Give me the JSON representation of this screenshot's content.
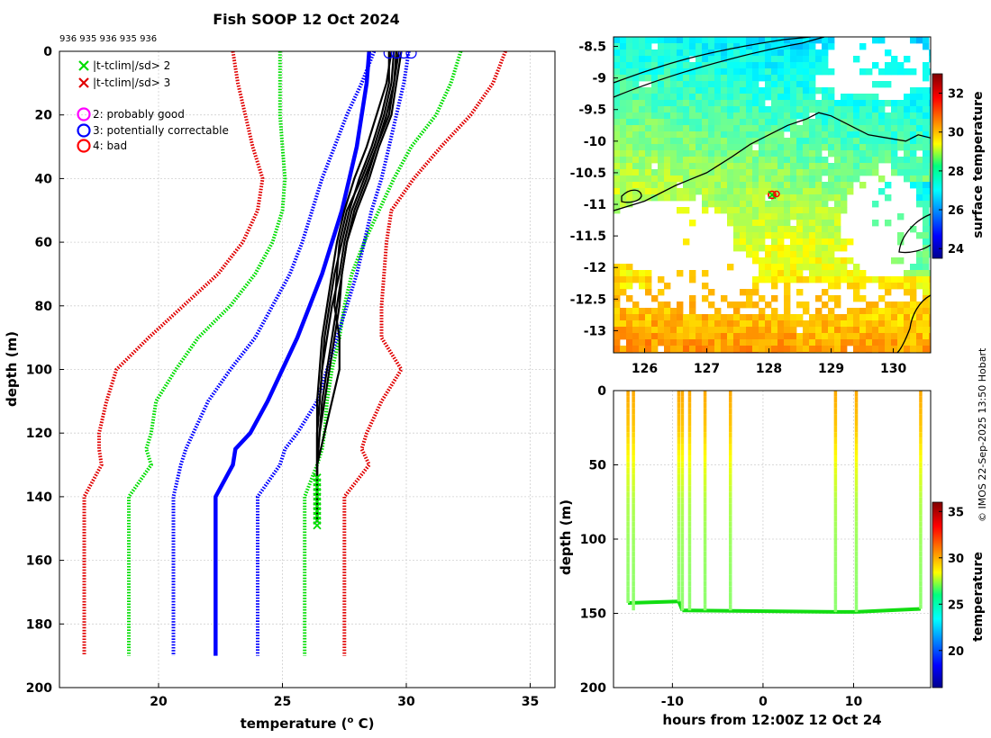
{
  "title": "Fish SOOP 12 Oct 2024",
  "profile_ids": "936 935 936 935 936",
  "credit": "© IMOS 22-Sep-2025 13:50 Hobart",
  "legend": {
    "sd2": "|t-tclim|/sd> 2",
    "sd3": "|t-tclim|/sd> 3",
    "flag2": "2: probably good",
    "flag3": "3: potentially correctable",
    "flag4": "4: bad"
  },
  "colors": {
    "clim_mean": "#0000ff",
    "sd1": "#0000ff",
    "sd2": "#00dd00",
    "sd3": "#e00000",
    "profiles": "#000000",
    "flag2": "#ff00ff",
    "flag3": "#0000ff",
    "flag4": "#ff0000",
    "land": "#000000"
  },
  "chart_data": [
    {
      "id": "profile_panel",
      "type": "line",
      "xlabel": "temperature (",
      "xlabel_sup": "o",
      "xlabel_end": " C)",
      "ylabel": "depth (m)",
      "xlim": [
        16,
        36
      ],
      "ylim": [
        200,
        0
      ],
      "xticks": [
        "20",
        "25",
        "30",
        "35"
      ],
      "yticks": [
        "0",
        "20",
        "40",
        "60",
        "80",
        "100",
        "120",
        "140",
        "160",
        "180",
        "200"
      ],
      "depth": [
        0,
        10,
        20,
        30,
        40,
        50,
        60,
        70,
        80,
        90,
        100,
        110,
        120,
        125,
        130,
        140,
        150,
        160,
        170,
        180,
        190
      ],
      "climatology_mean": [
        28.5,
        28.4,
        28.2,
        28.0,
        27.7,
        27.4,
        27.0,
        26.6,
        26.1,
        25.6,
        25.0,
        24.4,
        23.7,
        23.1,
        23.0,
        22.3,
        22.3,
        22.3,
        22.3,
        22.3,
        22.3
      ],
      "band_sd1": {
        "lower": [
          28.7,
          28.2,
          27.6,
          27.1,
          26.6,
          26.2,
          25.8,
          25.3,
          24.6,
          23.9,
          22.9,
          22.0,
          21.4,
          21.1,
          20.9,
          20.6,
          20.6,
          20.6,
          20.6,
          20.6,
          20.6
        ],
        "upper": [
          30.1,
          29.9,
          29.6,
          29.3,
          29.0,
          28.6,
          28.3,
          28.0,
          27.6,
          27.2,
          26.8,
          26.4,
          25.6,
          25.1,
          24.9,
          24.0,
          24.0,
          24.0,
          24.0,
          24.0,
          24.0
        ]
      },
      "band_sd2": {
        "lower": [
          24.9,
          24.9,
          24.9,
          25.0,
          25.1,
          25.0,
          24.6,
          23.9,
          22.9,
          21.6,
          20.7,
          19.9,
          19.7,
          19.5,
          19.7,
          18.8,
          18.8,
          18.8,
          18.8,
          18.8,
          18.8
        ],
        "upper": [
          32.2,
          31.8,
          31.2,
          30.2,
          29.5,
          28.9,
          28.3,
          27.8,
          27.5,
          27.3,
          27.0,
          26.8,
          26.7,
          26.6,
          26.4,
          25.9,
          25.9,
          25.9,
          25.9,
          25.9,
          25.9
        ]
      },
      "band_sd3": {
        "lower": [
          23.0,
          23.2,
          23.5,
          23.8,
          24.2,
          24.0,
          23.4,
          22.4,
          21.0,
          19.6,
          18.3,
          17.9,
          17.6,
          17.6,
          17.7,
          17.0,
          17.0,
          17.0,
          17.0,
          17.0,
          17.0
        ],
        "upper": [
          34.0,
          33.5,
          32.6,
          31.4,
          30.3,
          29.4,
          29.2,
          29.1,
          29.0,
          29.0,
          29.8,
          29.0,
          28.4,
          28.2,
          28.5,
          27.5,
          27.5,
          27.5,
          27.5,
          27.5,
          27.5
        ]
      },
      "profiles": [
        {
          "depth": [
            0,
            10,
            20,
            30,
            40,
            50,
            60,
            70,
            80,
            90,
            100,
            110,
            120,
            130,
            140,
            148
          ],
          "temp": [
            29.6,
            29.5,
            29.2,
            28.8,
            28.3,
            27.8,
            27.5,
            27.3,
            27.0,
            26.8,
            26.6,
            26.5,
            26.4,
            26.4,
            26.4,
            26.4
          ]
        },
        {
          "depth": [
            0,
            10,
            20,
            30,
            40,
            50,
            60,
            70,
            80,
            90,
            100,
            110,
            120,
            130,
            140,
            148
          ],
          "temp": [
            29.3,
            29.3,
            29.0,
            28.6,
            28.1,
            27.7,
            27.4,
            27.1,
            26.9,
            26.7,
            26.6,
            26.5,
            26.4,
            26.4,
            26.4,
            26.4
          ]
        },
        {
          "depth": [
            0,
            10,
            20,
            30,
            40,
            50,
            60,
            70,
            80,
            90,
            100,
            110,
            120,
            130,
            140,
            148
          ],
          "temp": [
            29.8,
            29.6,
            29.4,
            28.9,
            28.5,
            28.0,
            27.6,
            27.4,
            27.2,
            27.0,
            26.8,
            26.6,
            26.5,
            26.4,
            26.4,
            26.4
          ]
        },
        {
          "depth": [
            0,
            10,
            20,
            30,
            40,
            50,
            60,
            70,
            80,
            90,
            100,
            110,
            120,
            130,
            140,
            148
          ],
          "temp": [
            29.5,
            29.4,
            29.1,
            28.7,
            28.2,
            27.6,
            27.3,
            27.2,
            27.1,
            27.3,
            27.3,
            27.0,
            26.7,
            26.4,
            26.4,
            26.4
          ]
        },
        {
          "depth": [
            0,
            10,
            20,
            30,
            40,
            50,
            60,
            70,
            80,
            90,
            100,
            110,
            120,
            130,
            140,
            148
          ],
          "temp": [
            29.4,
            29.2,
            28.8,
            28.4,
            27.9,
            27.5,
            27.2,
            27.0,
            26.8,
            26.6,
            26.5,
            26.4,
            26.4,
            26.4,
            26.4,
            26.4
          ]
        },
        {
          "depth": [
            0,
            10,
            20,
            30,
            40,
            50,
            60,
            70,
            80,
            90,
            100,
            110,
            120,
            130,
            140,
            148
          ],
          "temp": [
            29.7,
            29.5,
            29.3,
            28.8,
            28.4,
            27.9,
            27.6,
            27.4,
            27.3,
            27.1,
            26.9,
            26.7,
            26.5,
            26.4,
            26.4,
            26.4
          ]
        }
      ],
      "surface_flags_flag3": {
        "depth": [
          0,
          0,
          0,
          0
        ],
        "temp": [
          29.3,
          29.6,
          29.9,
          30.2
        ]
      },
      "flagged_points_sd2": {
        "temp": 26.4,
        "depth_range": [
          134,
          150
        ]
      }
    },
    {
      "id": "sst_map",
      "type": "heatmap",
      "xticks": [
        "126",
        "127",
        "128",
        "129",
        "130"
      ],
      "yticks": [
        "-8.5",
        "-9",
        "-9.5",
        "-10",
        "-10.5",
        "-11",
        "-11.5",
        "-12",
        "-12.5",
        "-13"
      ],
      "xlim": [
        125.5,
        130.6
      ],
      "ylim": [
        -13.35,
        -8.35
      ],
      "colorbar_label": "surface temperature",
      "colorbar_ticks": [
        "24",
        "26",
        "28",
        "30",
        "32"
      ],
      "colorbar_range": [
        23.5,
        33.0
      ],
      "station": {
        "lon": 128.05,
        "lat": -10.85
      },
      "coastline_lon": [
        125.5,
        126.0,
        126.5,
        127.0,
        127.4,
        127.7,
        128.0,
        128.3,
        128.6,
        128.8,
        129.0,
        129.3,
        129.6,
        129.9,
        130.2,
        130.4,
        130.6
      ],
      "coastline_lat": [
        -11.1,
        -10.95,
        -10.7,
        -10.5,
        -10.25,
        -10.05,
        -9.9,
        -9.75,
        -9.65,
        -9.55,
        -9.6,
        -9.75,
        -9.9,
        -9.95,
        -10.0,
        -9.9,
        -9.95
      ]
    },
    {
      "id": "time_depth",
      "type": "scatter",
      "xlabel": "hours from 12:00Z 12 Oct 24",
      "ylabel": "depth (m)",
      "xlim": [
        -16.5,
        18.5
      ],
      "ylim": [
        200,
        0
      ],
      "xticks": [
        "-10",
        "0",
        "10"
      ],
      "yticks": [
        "0",
        "50",
        "100",
        "150",
        "200"
      ],
      "colorbar_label": "temperature",
      "colorbar_ticks": [
        "20",
        "25",
        "30",
        "35"
      ],
      "colorbar_range": [
        16.0,
        36.0
      ],
      "drop_hours": [
        -14.9,
        -14.3,
        -9.3,
        -8.9,
        -8.1,
        -6.4,
        -3.6,
        8.0,
        10.3,
        17.4
      ],
      "bottom_depth_hours": [
        -14.9,
        -9.3,
        -8.9,
        8.0,
        10.3,
        17.4
      ],
      "bottom_depth_values": [
        143,
        142,
        148,
        149,
        149,
        147
      ],
      "profile_depths": [
        0,
        25,
        50,
        75,
        100,
        125,
        145,
        148
      ],
      "profile_temps": [
        30.2,
        29.6,
        28.2,
        27.0,
        26.6,
        26.4,
        26.3,
        26.3
      ]
    }
  ]
}
